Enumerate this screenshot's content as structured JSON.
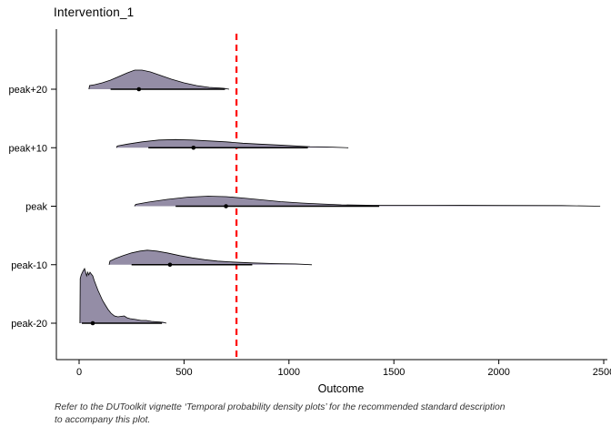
{
  "window": {
    "background": "#FFFFFF"
  },
  "title": "Intervention_1",
  "axes": {
    "xlabel": "Outcome",
    "x_ticks": [
      0,
      500,
      1000,
      1500,
      2000,
      2500
    ],
    "y_categories": [
      "peak+20",
      "peak+10",
      "peak",
      "peak-10",
      "peak-20"
    ]
  },
  "caption": {
    "lines": [
      "Refer to the DUToolkit vignette ‘Temporal probability density plots’ for the recommended standard description",
      "to accompany this plot."
    ]
  },
  "chart_data": {
    "type": "area",
    "subtype": "ridgeline-density",
    "title": "Intervention_1",
    "xlabel": "Outcome",
    "ylabel": "",
    "xlim": [
      0,
      2500
    ],
    "x_ticks": [
      0,
      500,
      1000,
      1500,
      2000,
      2500
    ],
    "categories": [
      "peak+20",
      "peak+10",
      "peak",
      "peak-10",
      "peak-20"
    ],
    "grid": false,
    "legend": "none",
    "fill_color": "#948DA6",
    "outline_color": "#000000",
    "reference_line": {
      "x": 750,
      "color": "#FF0000",
      "style": "dashed",
      "orientation": "vertical"
    },
    "series": [
      {
        "name": "peak+20",
        "point": 285,
        "interval": [
          150,
          695
        ],
        "curve": [
          [
            47,
            0
          ],
          [
            50,
            4
          ],
          [
            75,
            5
          ],
          [
            110,
            7
          ],
          [
            150,
            10
          ],
          [
            190,
            14
          ],
          [
            230,
            18
          ],
          [
            265,
            21
          ],
          [
            300,
            21
          ],
          [
            340,
            19
          ],
          [
            390,
            15
          ],
          [
            440,
            11
          ],
          [
            500,
            7
          ],
          [
            560,
            4
          ],
          [
            620,
            2
          ],
          [
            660,
            1.5
          ],
          [
            690,
            1
          ],
          [
            715,
            0
          ]
        ]
      },
      {
        "name": "peak+10",
        "point": 545,
        "interval": [
          330,
          1090
        ],
        "curve": [
          [
            178,
            0
          ],
          [
            182,
            2
          ],
          [
            230,
            4
          ],
          [
            300,
            6.5
          ],
          [
            380,
            8.5
          ],
          [
            460,
            9
          ],
          [
            540,
            8.5
          ],
          [
            620,
            7.5
          ],
          [
            700,
            6.5
          ],
          [
            780,
            5
          ],
          [
            860,
            4
          ],
          [
            950,
            3
          ],
          [
            1030,
            2
          ],
          [
            1100,
            1.2
          ],
          [
            1180,
            0.8
          ],
          [
            1283,
            0
          ]
        ]
      },
      {
        "name": "peak",
        "point": 700,
        "interval": [
          460,
          1430
        ],
        "curve": [
          [
            264,
            0
          ],
          [
            270,
            2
          ],
          [
            330,
            4.5
          ],
          [
            420,
            7.5
          ],
          [
            520,
            10
          ],
          [
            615,
            11
          ],
          [
            700,
            10.5
          ],
          [
            780,
            9
          ],
          [
            870,
            7
          ],
          [
            960,
            5
          ],
          [
            1060,
            3.5
          ],
          [
            1150,
            2.5
          ],
          [
            1250,
            1.5
          ],
          [
            1400,
            1
          ],
          [
            1700,
            1
          ],
          [
            2000,
            0.8
          ],
          [
            2300,
            0.7
          ],
          [
            2483,
            0
          ]
        ]
      },
      {
        "name": "peak-10",
        "point": 433,
        "interval": [
          250,
          825
        ],
        "curve": [
          [
            143,
            0
          ],
          [
            147,
            4
          ],
          [
            175,
            7
          ],
          [
            210,
            10
          ],
          [
            250,
            13
          ],
          [
            290,
            15
          ],
          [
            325,
            16
          ],
          [
            370,
            15
          ],
          [
            420,
            13
          ],
          [
            480,
            10
          ],
          [
            540,
            7.5
          ],
          [
            600,
            5.5
          ],
          [
            660,
            4
          ],
          [
            730,
            3
          ],
          [
            825,
            2
          ],
          [
            950,
            1.2
          ],
          [
            1030,
            0.8
          ],
          [
            1109,
            0
          ]
        ]
      },
      {
        "name": "peak-20",
        "point": 65,
        "interval": [
          13,
          395
        ],
        "curve": [
          [
            4,
            0
          ],
          [
            5,
            49
          ],
          [
            10,
            53
          ],
          [
            18,
            57
          ],
          [
            26,
            60
          ],
          [
            31,
            56
          ],
          [
            36,
            52
          ],
          [
            41,
            56
          ],
          [
            46,
            53
          ],
          [
            52,
            56
          ],
          [
            58,
            54
          ],
          [
            65,
            52
          ],
          [
            72,
            47
          ],
          [
            80,
            42
          ],
          [
            90,
            36
          ],
          [
            100,
            31
          ],
          [
            112,
            25
          ],
          [
            125,
            20
          ],
          [
            138,
            15
          ],
          [
            152,
            11
          ],
          [
            168,
            8
          ],
          [
            185,
            7
          ],
          [
            200,
            7.5
          ],
          [
            215,
            8
          ],
          [
            228,
            6
          ],
          [
            242,
            5
          ],
          [
            258,
            4.5
          ],
          [
            272,
            4
          ],
          [
            295,
            3
          ],
          [
            320,
            3
          ],
          [
            345,
            2
          ],
          [
            375,
            1.5
          ],
          [
            400,
            1
          ],
          [
            416,
            0
          ]
        ]
      }
    ]
  }
}
